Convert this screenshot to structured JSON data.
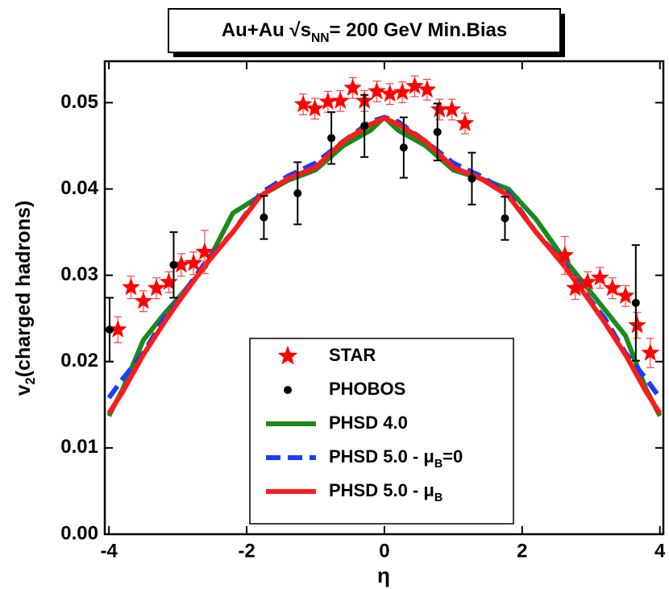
{
  "chart_data": {
    "type": "scatter-line",
    "title": [
      "Au+Au √s",
      "NN",
      "= 200 GeV Min.Bias"
    ],
    "x_label": "η",
    "y_label": [
      "v",
      "2",
      "(charged hadrons)"
    ],
    "xlim": [
      -4.06,
      4.05
    ],
    "ylim": [
      0,
      0.0548
    ],
    "xticks": [
      -4,
      -2,
      0,
      2,
      4
    ],
    "yticks": [
      {
        "value": 0,
        "label": "0.00"
      },
      0.01,
      0.02,
      0.03,
      0.04,
      0.05
    ],
    "legend": "bottom",
    "x": [
      -4,
      -3.8,
      -3.5,
      -3.2,
      -3,
      -2.6,
      -2.2,
      -1.8,
      -1.4,
      -1,
      -0.6,
      -0.2,
      0,
      0.2,
      0.6,
      1,
      1.4,
      1.8,
      2.2,
      2.6,
      3,
      3.2,
      3.5,
      3.8,
      4
    ],
    "series": [
      {
        "name": [
          "STAR"
        ],
        "color": "#ff0000",
        "marker": "star",
        "x": [
          -3.87,
          -3.68,
          -3.5,
          -3.31,
          -3.13,
          -2.95,
          -2.77,
          -2.61,
          -1.18,
          -1.01,
          -0.82,
          -0.64,
          -0.46,
          -0.29,
          -0.11,
          0.08,
          0.26,
          0.44,
          0.62,
          0.8,
          0.98,
          1.17,
          2.62,
          2.77,
          2.95,
          3.13,
          3.31,
          3.5,
          3.67,
          3.86
        ],
        "values": [
          0.0237,
          0.0286,
          0.027,
          0.0285,
          0.0292,
          0.0312,
          0.0314,
          0.0327,
          0.0498,
          0.0493,
          0.0501,
          0.0502,
          0.0517,
          0.0502,
          0.0513,
          0.051,
          0.0512,
          0.0519,
          0.0515,
          0.0492,
          0.0492,
          0.0476,
          0.0323,
          0.0285,
          0.0292,
          0.0297,
          0.0285,
          0.0276,
          0.0242,
          0.021
        ],
        "errors": [
          0.0015,
          0.0013,
          0.0012,
          0.0012,
          0.0012,
          0.0013,
          0.0013,
          0.0025,
          0.0012,
          0.0012,
          0.0012,
          0.0012,
          0.0012,
          0.0012,
          0.0012,
          0.0012,
          0.0012,
          0.0012,
          0.0012,
          0.0012,
          0.0012,
          0.0012,
          0.0022,
          0.0013,
          0.0012,
          0.0012,
          0.0012,
          0.0012,
          0.0015,
          0.0017
        ]
      },
      {
        "name": [
          "PHOBOS"
        ],
        "color": "#000000",
        "marker": "circle",
        "x": [
          -3.99,
          -3.06,
          -1.75,
          -1.26,
          -0.77,
          -0.29,
          0.28,
          0.77,
          1.27,
          1.75,
          3.65
        ],
        "values": [
          0.0237,
          0.0312,
          0.0367,
          0.0395,
          0.0459,
          0.0473,
          0.0448,
          0.0466,
          0.0412,
          0.0366,
          0.0268
        ],
        "errors": [
          0.0037,
          0.0038,
          0.0025,
          0.0036,
          0.003,
          0.0036,
          0.0035,
          0.0033,
          0.003,
          0.0025,
          0.0067
        ]
      },
      {
        "name": [
          "PHSD 4.0"
        ],
        "color": "#1a8a1a",
        "marker": "line",
        "values": [
          0.0137,
          0.0168,
          0.0225,
          0.0255,
          0.0273,
          0.031,
          0.0372,
          0.0392,
          0.041,
          0.0422,
          0.045,
          0.0468,
          0.0483,
          0.0468,
          0.045,
          0.0422,
          0.0412,
          0.04,
          0.0365,
          0.032,
          0.028,
          0.026,
          0.023,
          0.0168,
          0.0137
        ]
      },
      {
        "name": [
          "PHSD 5.0 - μ",
          "B",
          "=0"
        ],
        "color": "#1a3cff",
        "marker": "line",
        "dashed": true,
        "values": [
          0.0158,
          0.018,
          0.021,
          0.025,
          0.027,
          0.0315,
          0.035,
          0.0395,
          0.0415,
          0.043,
          0.0455,
          0.0478,
          0.0483,
          0.0478,
          0.0455,
          0.043,
          0.0415,
          0.0395,
          0.035,
          0.0315,
          0.027,
          0.025,
          0.021,
          0.018,
          0.0158
        ]
      },
      {
        "name": [
          "PHSD 5.0 - μ",
          "B"
        ],
        "color": "#ff1a1a",
        "marker": "line",
        "values": [
          0.014,
          0.0165,
          0.0208,
          0.0245,
          0.0268,
          0.0312,
          0.035,
          0.0392,
          0.0412,
          0.0425,
          0.0455,
          0.0475,
          0.0482,
          0.0475,
          0.0455,
          0.0425,
          0.0412,
          0.0392,
          0.035,
          0.0312,
          0.0268,
          0.0245,
          0.0208,
          0.0165,
          0.014
        ]
      }
    ]
  }
}
